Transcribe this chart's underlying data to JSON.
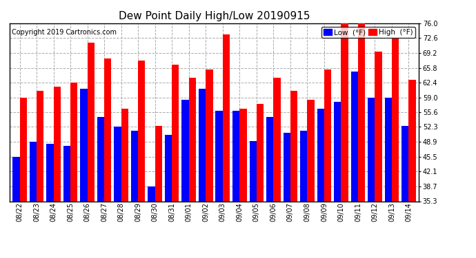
{
  "title": "Dew Point Daily High/Low 20190915",
  "copyright": "Copyright 2019 Cartronics.com",
  "legend_low": "Low  (°F)",
  "legend_high": "High  (°F)",
  "dates": [
    "08/22",
    "08/23",
    "08/24",
    "08/25",
    "08/26",
    "08/27",
    "08/28",
    "08/29",
    "08/30",
    "08/31",
    "09/01",
    "09/02",
    "09/03",
    "09/04",
    "09/05",
    "09/06",
    "09/07",
    "09/08",
    "09/09",
    "09/10",
    "09/11",
    "09/12",
    "09/13",
    "09/14"
  ],
  "low_values": [
    45.5,
    48.9,
    48.5,
    48.0,
    61.0,
    54.5,
    52.3,
    51.5,
    38.7,
    50.5,
    58.5,
    61.0,
    56.0,
    56.0,
    49.0,
    54.5,
    51.0,
    51.5,
    56.5,
    58.0,
    65.0,
    59.0,
    59.0,
    52.5
  ],
  "high_values": [
    59.0,
    60.5,
    61.5,
    62.5,
    71.5,
    68.0,
    56.5,
    67.5,
    52.5,
    66.5,
    63.5,
    65.5,
    73.5,
    56.5,
    57.5,
    63.5,
    60.5,
    58.5,
    65.5,
    76.5,
    76.0,
    69.5,
    72.5,
    63.0
  ],
  "bar_color_low": "#0000ff",
  "bar_color_high": "#ff0000",
  "bg_color": "#ffffff",
  "grid_color": "#aaaaaa",
  "ymin": 35.3,
  "ymax": 76.0,
  "yticks": [
    35.3,
    38.7,
    42.1,
    45.5,
    48.9,
    52.3,
    55.6,
    59.0,
    62.4,
    65.8,
    69.2,
    72.6,
    76.0
  ],
  "title_fontsize": 11,
  "copyright_fontsize": 7,
  "tick_fontsize": 7,
  "legend_fontsize": 7.5
}
